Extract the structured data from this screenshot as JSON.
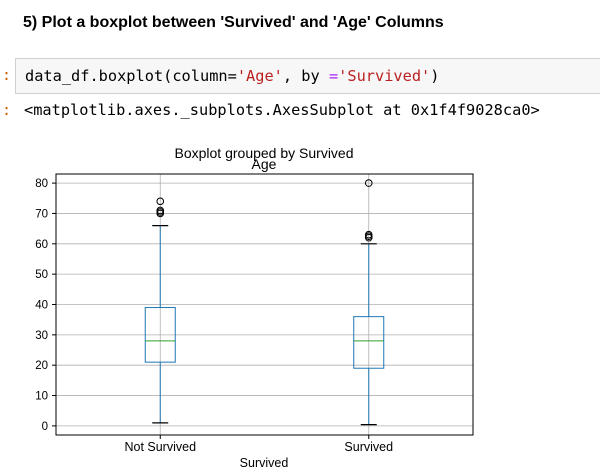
{
  "cell": {
    "heading": "5) Plot a boxplot between 'Survived' and 'Age' Columns",
    "input_prompt": ":",
    "output_prompt": ":",
    "code": {
      "p1": "data_df.boxplot(column=",
      "s1": "'Age'",
      "p2": ", by ",
      "op": "=",
      "s2": "'Survived'",
      "p3": ")"
    },
    "output": "<matplotlib.axes._subplots.AxesSubplot at 0x1f4f9028ca0>"
  },
  "chart_data": {
    "type": "boxplot",
    "suptitle": "Boxplot grouped by Survived",
    "title": "Age",
    "xlabel": "Survived",
    "ylabel": "",
    "ylim": [
      -3,
      83
    ],
    "yticks": [
      0,
      10,
      20,
      30,
      40,
      50,
      60,
      70,
      80
    ],
    "grid": true,
    "categories": [
      "Not Survived",
      "Survived"
    ],
    "boxes": [
      {
        "min": 1,
        "q1": 21,
        "median": 28,
        "q3": 39,
        "max": 66,
        "outliers": [
          70,
          70.5,
          71,
          74
        ]
      },
      {
        "min": 0.42,
        "q1": 19,
        "median": 28,
        "q3": 36,
        "max": 60,
        "outliers": [
          62,
          62.5,
          63,
          80
        ]
      }
    ],
    "colors": {
      "box": "#1f77b4",
      "median": "#2ca02c",
      "grid": "#b0b0b0",
      "outlier": "#000000"
    }
  }
}
